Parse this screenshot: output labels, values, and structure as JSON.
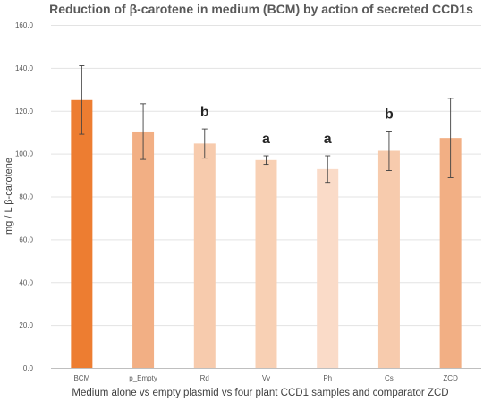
{
  "chart_data": {
    "type": "bar",
    "title": "Reduction of β-carotene in medium (BCM) by action of secreted CCD1s",
    "xlabel": "Medium alone vs empty plasmid vs four plant CCD1 samples and comparator ZCD",
    "ylabel": "mg / L β-carotene",
    "ylim": [
      0,
      160
    ],
    "yticks": [
      "0.0",
      "20.0",
      "40.0",
      "60.0",
      "80.0",
      "100.0",
      "120.0",
      "140.0",
      "160.0"
    ],
    "grid": true,
    "legend": "none",
    "categories": [
      "BCM",
      "p_Empty",
      "Rd",
      "Vv",
      "Ph",
      "Cs",
      "ZCD"
    ],
    "values": [
      125.0,
      110.3,
      104.7,
      97.0,
      92.8,
      101.3,
      107.3
    ],
    "error": [
      16.0,
      13.0,
      6.8,
      2.0,
      6.2,
      9.2,
      18.5
    ],
    "annotations": [
      "",
      "",
      "b",
      "a",
      "a",
      "b",
      ""
    ],
    "colors": [
      "#ED7D31",
      "#F2AF84",
      "#F7CBAD",
      "#F8D0B4",
      "#FADBC8",
      "#F7CBAD",
      "#F2AF84"
    ]
  }
}
